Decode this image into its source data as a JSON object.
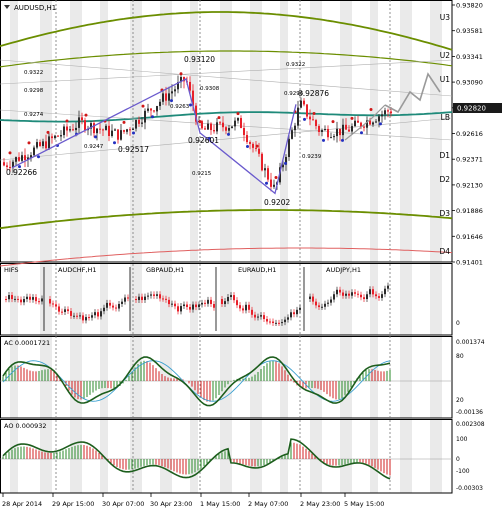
{
  "symbol_title": "AUDUSD,H1",
  "current_price": "0.92820",
  "price_scale": [
    "0.93820",
    "0.93581",
    "0.93341",
    "0.93090",
    "0.92850",
    "0.92616",
    "0.92371",
    "0.92130",
    "0.91886",
    "0.91646",
    "0.91401"
  ],
  "level_labels": [
    "U3",
    "U2",
    "U1",
    "LB",
    "D1",
    "D2",
    "D3",
    "D4"
  ],
  "time_labels": [
    "28 Apr 2014",
    "29 Apr 15:00",
    "30 Apr 07:00",
    "30 Apr 23:00",
    "1 May 15:00",
    "2 May 07:00",
    "2 May 23:00",
    "5 May 15:00"
  ],
  "pivot_labels": [
    {
      "text": "0.93120"
    },
    {
      "text": "0.92876"
    },
    {
      "text": "0.92266"
    },
    {
      "text": "0.92517"
    },
    {
      "text": "0.92601"
    },
    {
      "text": "0.9202"
    },
    {
      "text": "0.9322"
    },
    {
      "text": "0.9298"
    },
    {
      "text": "0.9274"
    },
    {
      "text": "0.9247"
    },
    {
      "text": "0.9308"
    },
    {
      "text": "0.9263"
    },
    {
      "text": "0.9215"
    },
    {
      "text": "0.9296"
    },
    {
      "text": "0.9239"
    },
    {
      "text": "0.9322"
    }
  ],
  "subpanel1": {
    "label": "HIFS",
    "pairs": [
      "AUDCHF,H1",
      "GBPAUD,H1",
      "EURAUD,H1",
      "AUDJPY,H1"
    ],
    "scale": [
      "",
      "0"
    ]
  },
  "subpanel2": {
    "label": "AC 0.0001721",
    "scale": [
      "0.001374",
      "80",
      "20",
      "-0.00136"
    ]
  },
  "subpanel3": {
    "label": "AO 0.000932",
    "scale": [
      "0.002308",
      "100",
      "0",
      "-100",
      "-0.00303"
    ]
  },
  "colors": {
    "up_candle": "#2b2b2b",
    "down_candle": "#e8202a",
    "channel": "#6b8e00",
    "midline": "#1f8a7a",
    "zigzag": "#6a5acd",
    "forecast": "#9a9a9a",
    "session_band": "#d9d9d9",
    "grid_text": "#000000",
    "price_highlight": "#ffffff"
  },
  "chart_data": {
    "type": "line",
    "title": "AUDUSD,H1",
    "ylim": [
      0.914,
      0.9382
    ],
    "zigzag_points": [
      {
        "x": "28 Apr 2014",
        "y": 0.92266
      },
      {
        "x": "30 Apr 23:00",
        "y": 0.9312
      },
      {
        "x": "1 May 15:00",
        "y": 0.92601
      },
      {
        "x": "2 May 07:00",
        "y": 0.9202
      },
      {
        "x": "2 May 23:00",
        "y": 0.92876
      }
    ],
    "levels": {
      "U3": 0.9359,
      "U2": 0.9334,
      "U1": 0.9305,
      "LB": 0.9266,
      "D1": 0.9237,
      "D2": 0.9213,
      "D3": 0.9188,
      "D4": 0.9155
    },
    "last_price": 0.9282
  }
}
